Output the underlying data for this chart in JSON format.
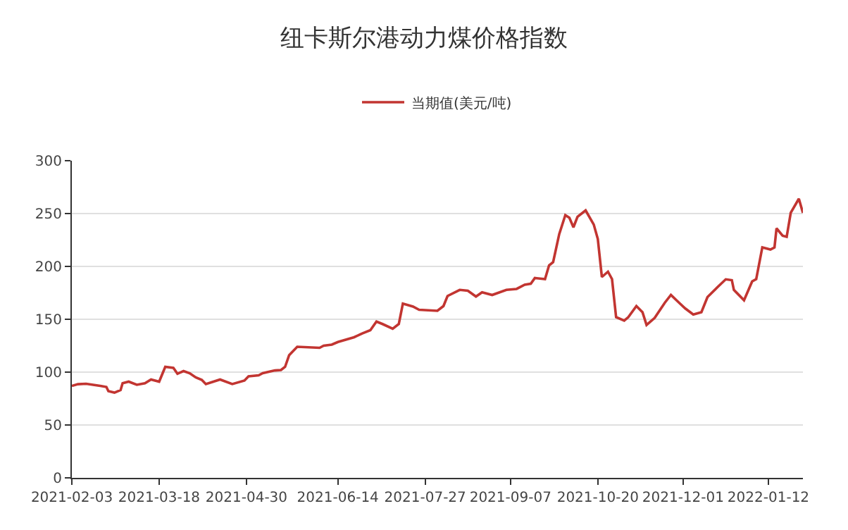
{
  "chart_data": {
    "type": "line",
    "title": "纽卡斯尔港动力煤价格指数",
    "x": [
      "2021-02-03",
      "2021-02-06",
      "2021-02-10",
      "2021-02-17",
      "2021-02-20",
      "2021-02-21",
      "2021-02-24",
      "2021-02-27",
      "2021-02-28",
      "2021-03-03",
      "2021-03-07",
      "2021-03-11",
      "2021-03-14",
      "2021-03-18",
      "2021-03-21",
      "2021-03-25",
      "2021-03-27",
      "2021-03-30",
      "2021-04-02",
      "2021-04-05",
      "2021-04-08",
      "2021-04-10",
      "2021-04-17",
      "2021-04-23",
      "2021-04-29",
      "2021-05-01",
      "2021-05-06",
      "2021-05-08",
      "2021-05-14",
      "2021-05-17",
      "2021-05-19",
      "2021-05-21",
      "2021-05-25",
      "2021-06-05",
      "2021-06-07",
      "2021-06-11",
      "2021-06-14",
      "2021-06-22",
      "2021-06-26",
      "2021-06-30",
      "2021-07-03",
      "2021-07-06",
      "2021-07-11",
      "2021-07-14",
      "2021-07-16",
      "2021-07-21",
      "2021-07-24",
      "2021-08-02",
      "2021-08-05",
      "2021-08-07",
      "2021-08-13",
      "2021-08-17",
      "2021-08-21",
      "2021-08-24",
      "2021-08-29",
      "2021-09-05",
      "2021-09-10",
      "2021-09-14",
      "2021-09-17",
      "2021-09-19",
      "2021-09-24",
      "2021-09-26",
      "2021-09-28",
      "2021-10-01",
      "2021-10-04",
      "2021-10-06",
      "2021-10-08",
      "2021-10-10",
      "2021-10-14",
      "2021-10-18",
      "2021-10-20",
      "2021-10-22",
      "2021-10-25",
      "2021-10-27",
      "2021-10-29",
      "2021-11-02",
      "2021-11-04",
      "2021-11-08",
      "2021-11-11",
      "2021-11-13",
      "2021-11-17",
      "2021-11-22",
      "2021-11-25",
      "2021-11-29",
      "2021-12-02",
      "2021-12-06",
      "2021-12-10",
      "2021-12-13",
      "2021-12-18",
      "2021-12-22",
      "2021-12-25",
      "2021-12-26",
      "2021-12-31",
      "2022-01-04",
      "2022-01-06",
      "2022-01-09",
      "2022-01-13",
      "2022-01-15",
      "2022-01-16",
      "2022-01-19",
      "2022-01-21",
      "2022-01-23",
      "2022-01-27",
      "2022-01-29"
    ],
    "series": [
      {
        "name": "当期值(美元/吨)",
        "color": "#c23531",
        "values": [
          87,
          88.6,
          89,
          87,
          86,
          82,
          80.6,
          83,
          89.5,
          91,
          88,
          89.5,
          93,
          91,
          105,
          104,
          98.5,
          101,
          99,
          95,
          92.7,
          88.7,
          93,
          88.7,
          92,
          96,
          97,
          99,
          101.6,
          102,
          105,
          116,
          124,
          123,
          125,
          126,
          128.5,
          133,
          136.6,
          139.7,
          147.8,
          145.5,
          141,
          145.5,
          164.8,
          162,
          159,
          158,
          162.5,
          172,
          177.8,
          177,
          171.5,
          175.5,
          173,
          177.8,
          178.7,
          182.7,
          183.6,
          189,
          188,
          201,
          204,
          230.6,
          248.5,
          246,
          237,
          247,
          253,
          239.6,
          226,
          190,
          195,
          188,
          152,
          148.7,
          152,
          162.5,
          156.7,
          144.6,
          151.3,
          165.7,
          173,
          165.7,
          160.3,
          154.5,
          156.7,
          171,
          180.5,
          187.8,
          187,
          177.8,
          168,
          185.8,
          188,
          218,
          216,
          218,
          236,
          229,
          228,
          250.7,
          264,
          250.7
        ]
      }
    ],
    "xlim": [
      "2021-02-03",
      "2022-01-29"
    ],
    "xticks": [
      "2021-02-03",
      "2021-03-18",
      "2021-04-30",
      "2021-06-14",
      "2021-07-27",
      "2021-09-07",
      "2021-10-20",
      "2021-12-01",
      "2022-01-12"
    ],
    "ylim": [
      0,
      300
    ],
    "yticks": [
      0,
      50,
      100,
      150,
      200,
      250,
      300
    ],
    "grid": "y",
    "legend": "top",
    "line_style": "solid"
  }
}
